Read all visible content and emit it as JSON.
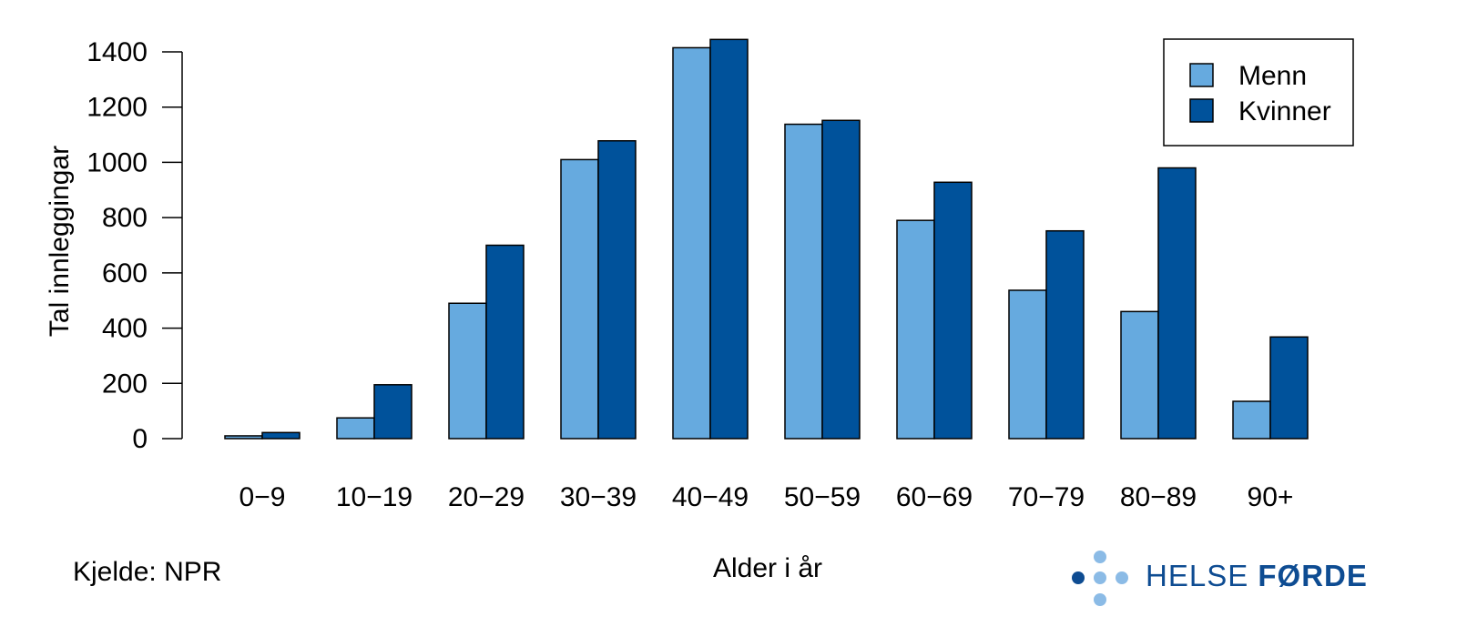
{
  "chart_data": {
    "type": "bar",
    "categories": [
      "0−9",
      "10−19",
      "20−29",
      "30−39",
      "40−49",
      "50−59",
      "60−69",
      "70−79",
      "80−89",
      "90+"
    ],
    "series": [
      {
        "name": "Menn",
        "color": "#66aadf",
        "values": [
          10,
          75,
          490,
          1010,
          1415,
          1138,
          790,
          537,
          460,
          135
        ]
      },
      {
        "name": "Kvinner",
        "color": "#00529b",
        "values": [
          22,
          195,
          700,
          1078,
          1445,
          1152,
          928,
          752,
          980,
          368
        ]
      }
    ],
    "xlabel": "Alder i år",
    "ylabel": "Tal innleggingar",
    "ylim": [
      0,
      1400
    ],
    "yticks": [
      0,
      200,
      400,
      600,
      800,
      1000,
      1200,
      1400
    ],
    "grid": false,
    "legend_position": "top-right"
  },
  "footer": {
    "source": "Kjelde: NPR",
    "logo_light": "HELSE",
    "logo_bold": "FØRDE"
  }
}
